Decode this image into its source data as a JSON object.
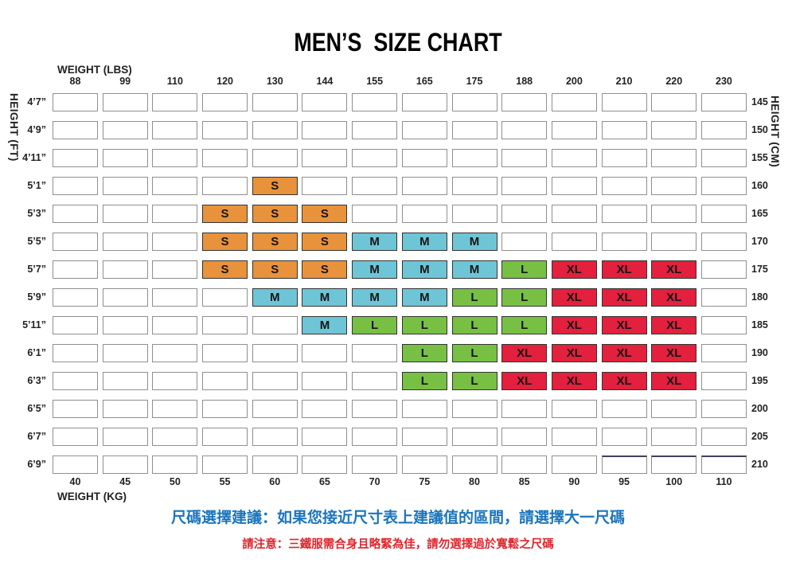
{
  "chart_data": {
    "type": "heatmap",
    "title": "MEN’S  SIZE CHART",
    "x_top": {
      "label": "WEIGHT (LBS)",
      "ticks": [
        "88",
        "99",
        "110",
        "120",
        "130",
        "144",
        "155",
        "165",
        "175",
        "188",
        "200",
        "210",
        "220",
        "230"
      ]
    },
    "x_bottom": {
      "label": "WEIGHT (KG)",
      "ticks": [
        "40",
        "45",
        "50",
        "55",
        "60",
        "65",
        "70",
        "75",
        "80",
        "85",
        "90",
        "95",
        "100",
        "110"
      ]
    },
    "y_left": {
      "label": "HEIGHT (FT)",
      "ticks": [
        "4’7”",
        "4’9”",
        "4’11”",
        "5’1”",
        "5’3”",
        "5’5”",
        "5’7”",
        "5’9”",
        "5’11”",
        "6’1”",
        "6’3”",
        "6’5”",
        "6’7”",
        "6’9”"
      ]
    },
    "y_right": {
      "label": "HEIGHT (CM)",
      "ticks": [
        "145",
        "150",
        "155",
        "160",
        "165",
        "170",
        "175",
        "180",
        "185",
        "190",
        "195",
        "200",
        "205",
        "210"
      ]
    },
    "cell_colors": {
      "S": "#E8923C",
      "M": "#6EC5D6",
      "L": "#77C043",
      "XL": "#E3203E"
    },
    "matrix": [
      [
        "",
        "",
        "",
        "",
        "",
        "",
        "",
        "",
        "",
        "",
        "",
        "",
        "",
        ""
      ],
      [
        "",
        "",
        "",
        "",
        "",
        "",
        "",
        "",
        "",
        "",
        "",
        "",
        "",
        ""
      ],
      [
        "",
        "",
        "",
        "",
        "",
        "",
        "",
        "",
        "",
        "",
        "",
        "",
        "",
        ""
      ],
      [
        "",
        "",
        "",
        "",
        "S",
        "",
        "",
        "",
        "",
        "",
        "",
        "",
        "",
        ""
      ],
      [
        "",
        "",
        "",
        "S",
        "S",
        "S",
        "",
        "",
        "",
        "",
        "",
        "",
        "",
        ""
      ],
      [
        "",
        "",
        "",
        "S",
        "S",
        "S",
        "M",
        "M",
        "M",
        "",
        "",
        "",
        "",
        ""
      ],
      [
        "",
        "",
        "",
        "S",
        "S",
        "S",
        "M",
        "M",
        "M",
        "L",
        "XL",
        "XL",
        "XL",
        ""
      ],
      [
        "",
        "",
        "",
        "",
        "M",
        "M",
        "M",
        "M",
        "L",
        "L",
        "XL",
        "XL",
        "XL",
        ""
      ],
      [
        "",
        "",
        "",
        "",
        "",
        "M",
        "L",
        "L",
        "L",
        "L",
        "XL",
        "XL",
        "XL",
        ""
      ],
      [
        "",
        "",
        "",
        "",
        "",
        "",
        "",
        "L",
        "L",
        "XL",
        "XL",
        "XL",
        "XL",
        ""
      ],
      [
        "",
        "",
        "",
        "",
        "",
        "",
        "",
        "L",
        "L",
        "XL",
        "XL",
        "XL",
        "XL",
        ""
      ],
      [
        "",
        "",
        "",
        "",
        "",
        "",
        "",
        "",
        "",
        "",
        "",
        "",
        "",
        ""
      ],
      [
        "",
        "",
        "",
        "",
        "",
        "",
        "",
        "",
        "",
        "",
        "",
        "",
        "",
        ""
      ],
      [
        "",
        "",
        "",
        "",
        "",
        "",
        "",
        "",
        "",
        "",
        "",
        "",
        "",
        ""
      ]
    ]
  },
  "footer": {
    "advice": "尺碼選擇建議：如果您接近尺寸表上建議值的區間，請選擇大一尺碼",
    "advice_color": "#1B75BC",
    "warning": "請注意：三鐵服需合身且略緊為佳，請勿選擇過於寬鬆之尺碼",
    "warning_color": "#E0252D"
  }
}
